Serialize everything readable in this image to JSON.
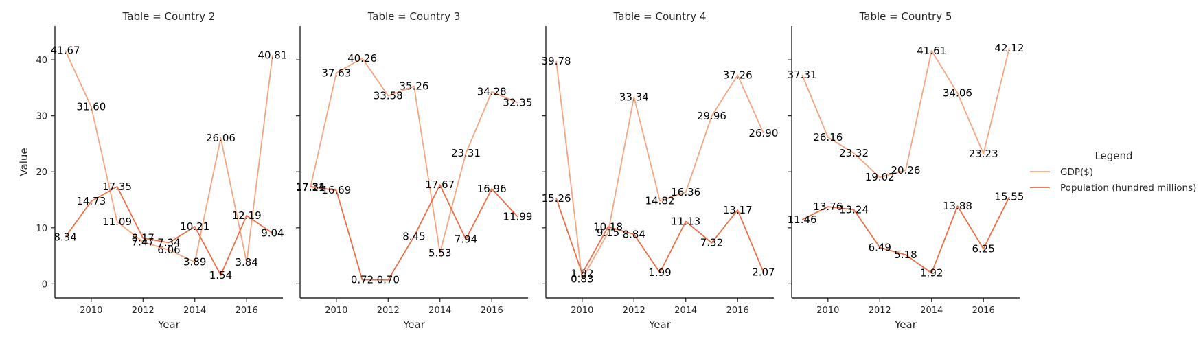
{
  "figure": {
    "legend": {
      "title": "Legend",
      "placement": "right"
    }
  },
  "chart_data": {
    "type": "line",
    "x": [
      2009,
      2010,
      2011,
      2012,
      2013,
      2014,
      2015,
      2016,
      2017
    ],
    "xlabel": "Year",
    "ylabel": "Value",
    "xlim": [
      2008.6,
      2017.4
    ],
    "ylim": [
      -1.3,
      44.3
    ],
    "xticks": [
      2010,
      2012,
      2014,
      2016
    ],
    "yticks": [
      0,
      10,
      20,
      30,
      40
    ],
    "grid": false,
    "legend": [
      "GDP($)",
      "Population (hundred millions)"
    ],
    "colors": {
      "GDP($)": "#f4a582",
      "Population (hundred millions)": "#ea6f48"
    },
    "panels": [
      {
        "title": "Table = Country 2",
        "series": [
          {
            "name": "GDP($)",
            "values": [
              41.67,
              31.6,
              11.09,
              7.47,
              6.06,
              3.89,
              26.06,
              3.84,
              40.81
            ],
            "labels": [
              "41.67",
              "31.60",
              "11.09",
              "7.47",
              "6.06",
              "3.89",
              "26.06",
              "3.84",
              "40.81"
            ]
          },
          {
            "name": "Population (hundred millions)",
            "values": [
              8.34,
              14.73,
              17.35,
              8.17,
              7.34,
              10.21,
              1.54,
              12.19,
              9.04
            ],
            "labels": [
              "8.34",
              "14.73",
              "17.35",
              "8.17",
              "7.34",
              "10.21",
              "1.54",
              "12.19",
              "9.04"
            ]
          }
        ]
      },
      {
        "title": "Table = Country 3",
        "series": [
          {
            "name": "GDP($)",
            "values": [
              17.21,
              37.63,
              40.26,
              33.58,
              35.26,
              5.53,
              23.31,
              34.28,
              32.35
            ],
            "labels": [
              "17.21",
              "37.63",
              "40.26",
              "33.58",
              "35.26",
              "5.53",
              "23.31",
              "34.28",
              "32.35"
            ]
          },
          {
            "name": "Population (hundred millions)",
            "values": [
              17.34,
              16.69,
              0.72,
              0.7,
              8.45,
              17.67,
              7.94,
              16.96,
              11.99
            ],
            "labels": [
              "17.34",
              "16.69",
              "0.72",
              "0.70",
              "8.45",
              "17.67",
              "7.94",
              "16.96",
              "11.99"
            ]
          }
        ]
      },
      {
        "title": "Table = Country 4",
        "series": [
          {
            "name": "GDP($)",
            "values": [
              39.78,
              0.83,
              9.15,
              33.34,
              14.82,
              16.36,
              29.96,
              37.26,
              26.9
            ],
            "labels": [
              "39.78",
              "0.83",
              "9.15",
              "33.34",
              "14.82",
              "16.36",
              "29.96",
              "37.26",
              "26.90"
            ]
          },
          {
            "name": "Population (hundred millions)",
            "values": [
              15.26,
              1.82,
              10.18,
              8.84,
              1.99,
              11.13,
              7.32,
              13.17,
              2.07
            ],
            "labels": [
              "15.26",
              "1.82",
              "10.18",
              "8.84",
              "1.99",
              "11.13",
              "7.32",
              "13.17",
              "2.07"
            ]
          }
        ]
      },
      {
        "title": "Table = Country 5",
        "series": [
          {
            "name": "GDP($)",
            "values": [
              37.31,
              26.16,
              23.32,
              19.02,
              20.26,
              41.61,
              34.06,
              23.23,
              42.12
            ],
            "labels": [
              "37.31",
              "26.16",
              "23.32",
              "19.02",
              "20.26",
              "41.61",
              "34.06",
              "23.23",
              "42.12"
            ]
          },
          {
            "name": "Population (hundred millions)",
            "values": [
              11.46,
              13.76,
              13.24,
              6.49,
              5.18,
              1.92,
              13.88,
              6.25,
              15.55
            ],
            "labels": [
              "11.46",
              "13.76",
              "13.24",
              "6.49",
              "5.18",
              "1.92",
              "13.88",
              "6.25",
              "15.55"
            ]
          }
        ]
      }
    ]
  }
}
